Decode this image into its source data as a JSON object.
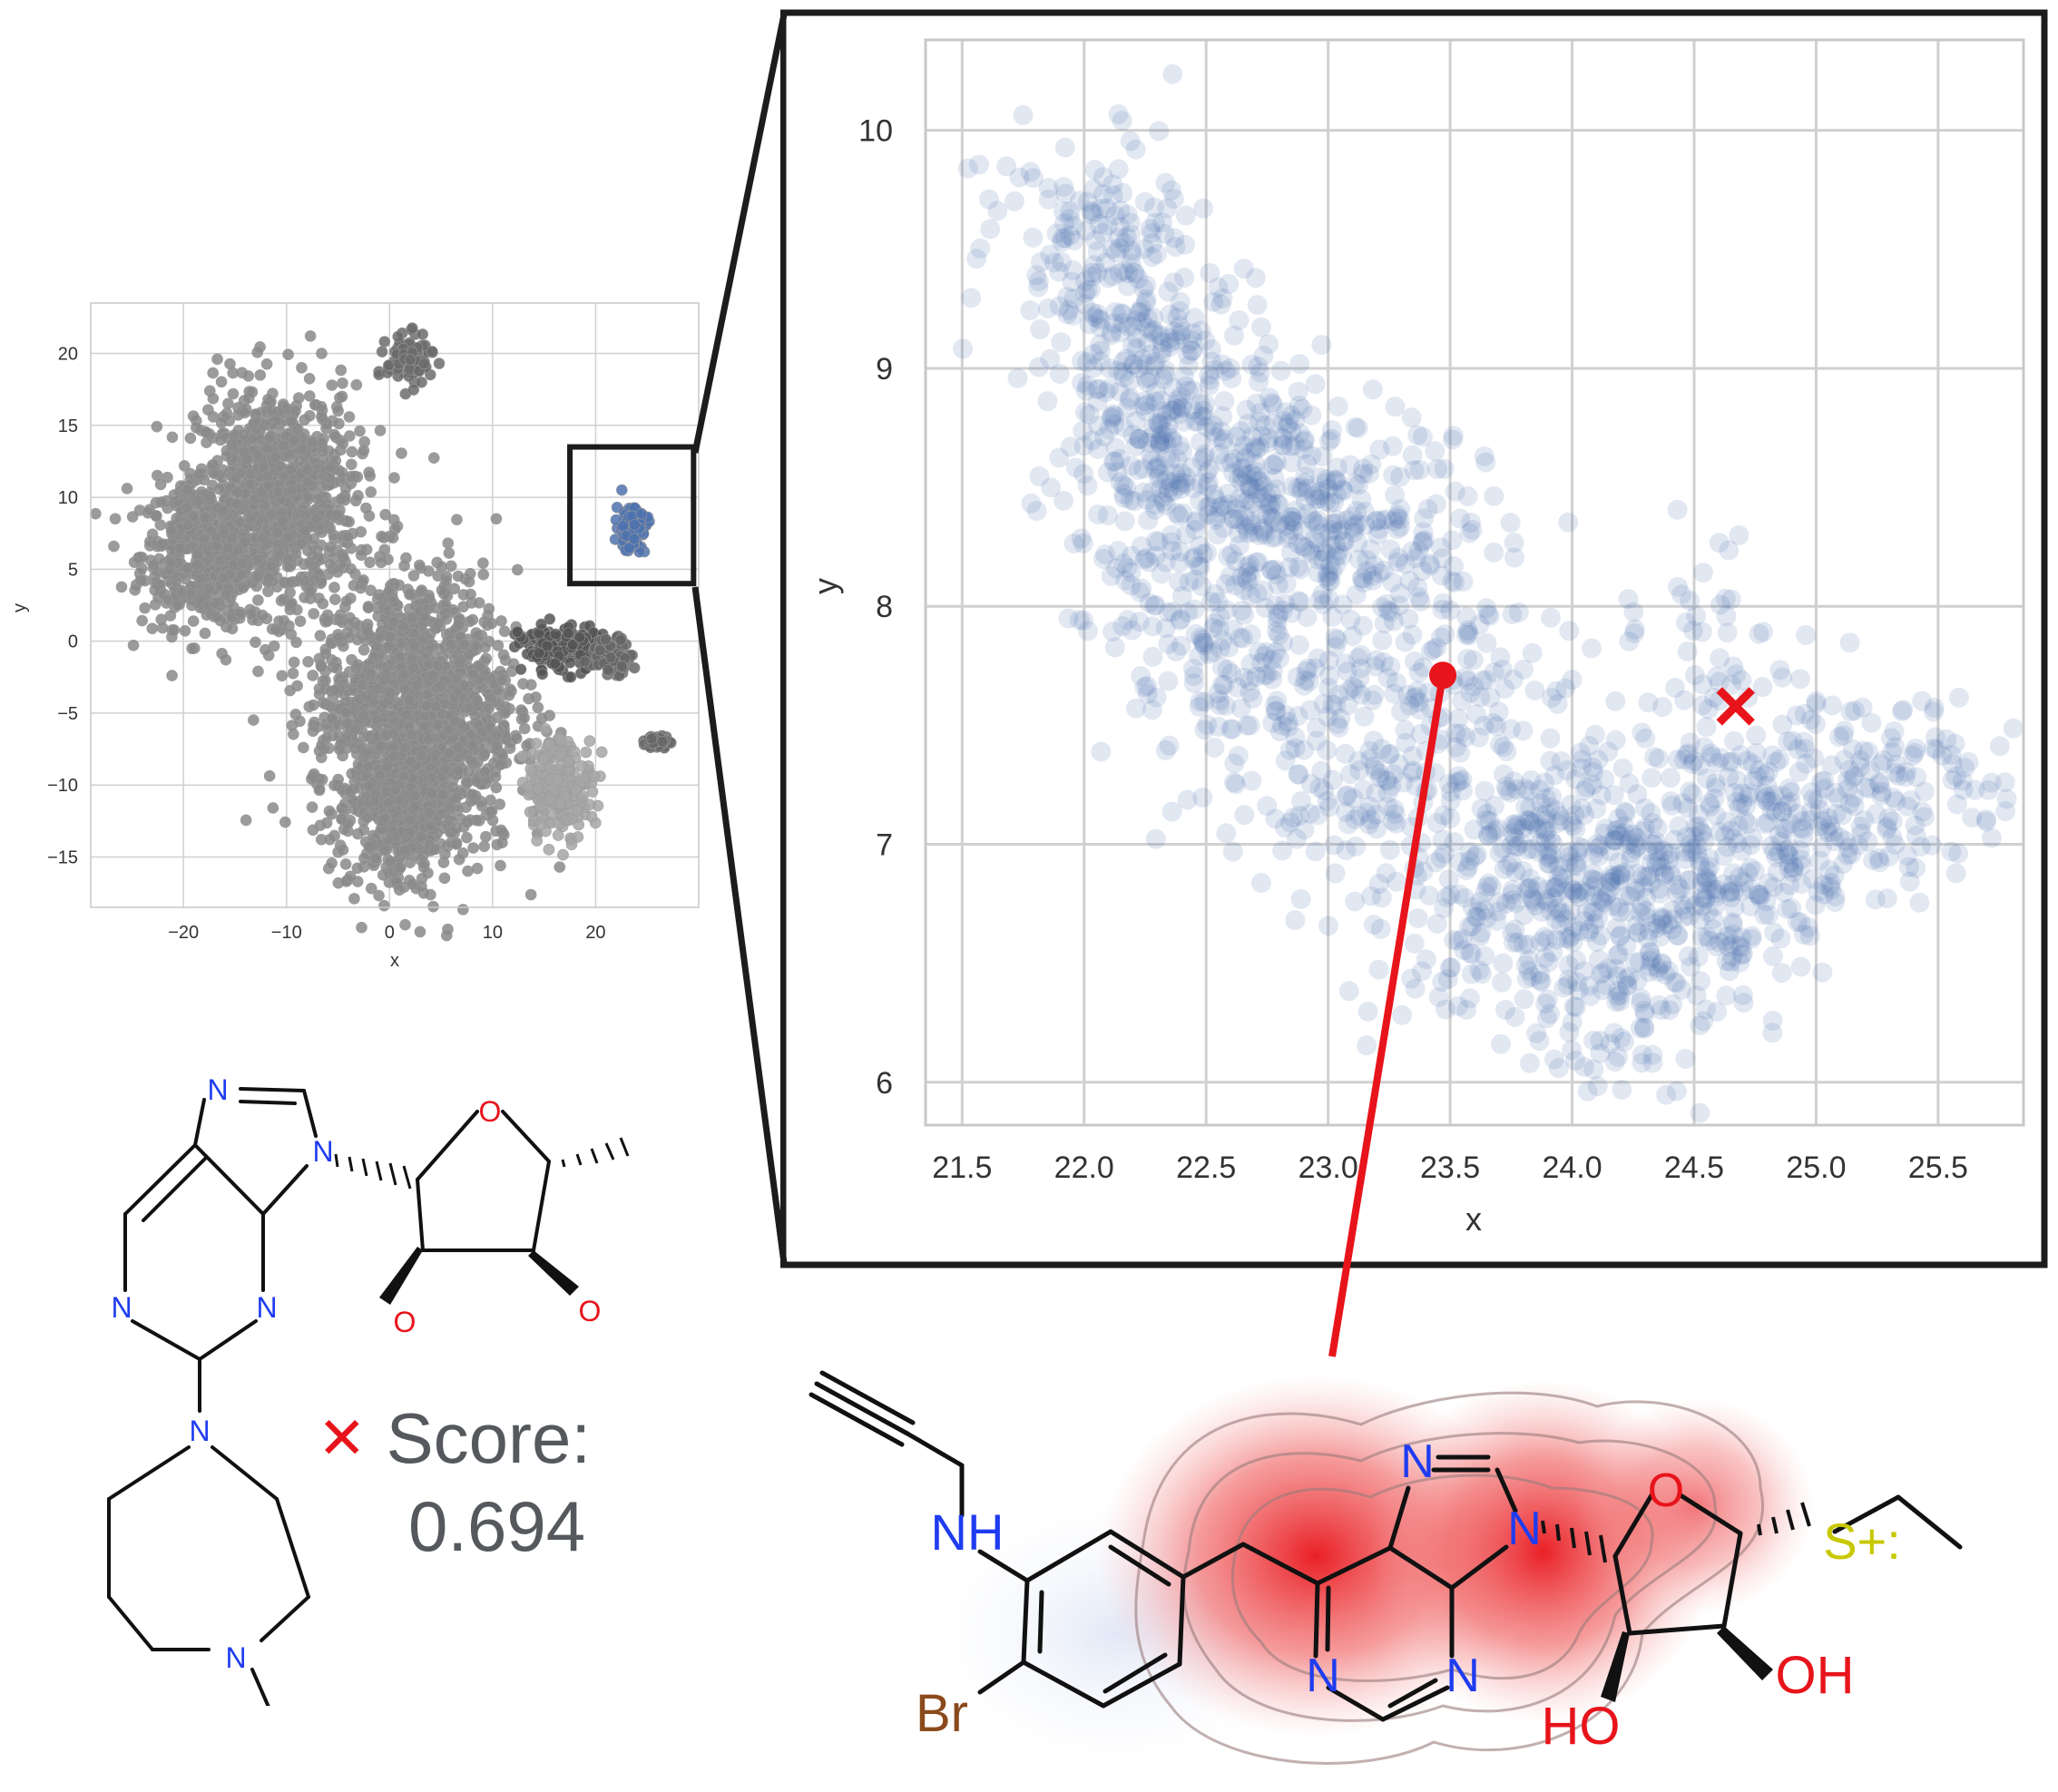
{
  "overview_plot": {
    "chart_data": {
      "type": "scatter",
      "xlabel": "x",
      "ylabel": "y",
      "xlim": [
        -29,
        30
      ],
      "ylim": [
        -18.5,
        23.5
      ],
      "xticks": [
        -20,
        -10,
        0,
        10,
        20
      ],
      "yticks": [
        -15,
        -10,
        -5,
        0,
        5,
        10,
        15,
        20
      ],
      "grid": true,
      "highlight_box": {
        "x": [
          17.5,
          29.5
        ],
        "y": [
          4,
          13.5
        ]
      },
      "clusters": [
        {
          "center": [
            -18,
            6
          ],
          "spread": [
            5.5,
            4.5
          ],
          "color": "#8a8a8a"
        },
        {
          "center": [
            -11,
            10
          ],
          "spread": [
            7,
            7
          ],
          "color": "#8a8a8a"
        },
        {
          "center": [
            2.5,
            -5
          ],
          "spread": [
            9,
            9
          ],
          "color": "#8a8a8a"
        },
        {
          "center": [
            1.5,
            -12
          ],
          "spread": [
            4,
            4
          ],
          "color": "#8a8a8a"
        },
        {
          "center": [
            2,
            19.5
          ],
          "spread": [
            2,
            1.5
          ],
          "color": "#6b6b6b"
        },
        {
          "center": [
            16.5,
            -0.5
          ],
          "spread": [
            3.5,
            1.5
          ],
          "color": "#555555"
        },
        {
          "center": [
            21.5,
            -1
          ],
          "spread": [
            1.8,
            1.1
          ],
          "color": "#666666"
        },
        {
          "center": [
            16.5,
            -10
          ],
          "spread": [
            3,
            3
          ],
          "color": "#a6a6a6"
        },
        {
          "center": [
            26,
            -7
          ],
          "spread": [
            1,
            0.4
          ],
          "color": "#666666"
        },
        {
          "center": [
            23.5,
            8
          ],
          "spread": [
            1.4,
            1.5
          ],
          "color": "#4c72b0"
        }
      ]
    }
  },
  "zoom_plot": {
    "chart_data": {
      "type": "scatter",
      "xlabel": "x",
      "ylabel": "y",
      "xlim": [
        21.35,
        25.85
      ],
      "ylim": [
        5.82,
        10.38
      ],
      "xticks": [
        21.5,
        22.0,
        22.5,
        23.0,
        23.5,
        24.0,
        24.5,
        25.0,
        25.5
      ],
      "xtick_labels": [
        "21.5",
        "22.0",
        "22.5",
        "23.0",
        "23.5",
        "24.0",
        "24.5",
        "25.0",
        "25.5"
      ],
      "yticks": [
        6,
        7,
        8,
        9,
        10
      ],
      "grid": true,
      "point_color": "#4c72b0",
      "highlight_point": {
        "x": 23.47,
        "y": 7.71,
        "color": "#e8141b"
      },
      "cross_marker": {
        "x": 24.67,
        "y": 7.58,
        "color": "#e8141b"
      },
      "density_path": [
        [
          22.0,
          9.7
        ],
        [
          22.1,
          9.35
        ],
        [
          22.25,
          9.05
        ],
        [
          22.4,
          8.8
        ],
        [
          22.55,
          8.6
        ],
        [
          22.75,
          8.45
        ],
        [
          23.0,
          8.35
        ],
        [
          23.3,
          8.3
        ],
        [
          23.55,
          7.6
        ],
        [
          23.7,
          7.1
        ],
        [
          23.9,
          6.9
        ],
        [
          24.1,
          6.8
        ],
        [
          24.35,
          6.75
        ],
        [
          24.6,
          6.9
        ],
        [
          24.9,
          7.05
        ],
        [
          25.2,
          7.15
        ],
        [
          25.5,
          7.35
        ]
      ],
      "secondary_path": [
        [
          22.3,
          8.7
        ],
        [
          22.45,
          8.25
        ],
        [
          22.55,
          7.9
        ],
        [
          22.7,
          7.6
        ],
        [
          22.95,
          7.35
        ],
        [
          23.3,
          7.2
        ],
        [
          23.7,
          6.6
        ],
        [
          24.0,
          6.3
        ],
        [
          24.4,
          6.5
        ],
        [
          24.6,
          7.3
        ],
        [
          24.45,
          7.95
        ]
      ]
    }
  },
  "score": {
    "label": "Score:",
    "value": "0.694",
    "marker": "✕"
  },
  "molecule_left": {
    "atoms": {
      "n1": "N",
      "n2": "N",
      "n3": "N",
      "n4": "N",
      "n5": "N",
      "n6": "N",
      "o_ring": "O",
      "o1": "O",
      "o2": "O"
    }
  },
  "molecule_right": {
    "atoms": {
      "nh": "NH",
      "br": "Br",
      "n1": "N",
      "n2": "N",
      "n3": "N",
      "n4": "N",
      "o_ring": "O",
      "ho": "HO",
      "oh": "OH",
      "s": "S+:"
    }
  },
  "colors": {
    "blue": "#4c72b0",
    "red": "#e8141b",
    "frame": "#1c1c1c",
    "grid": "#d0d0d0",
    "nitrogen": "#1f3cf0",
    "oxygen": "#e8141b",
    "bromine": "#8b4a1c",
    "sulfur": "#c8c800"
  }
}
